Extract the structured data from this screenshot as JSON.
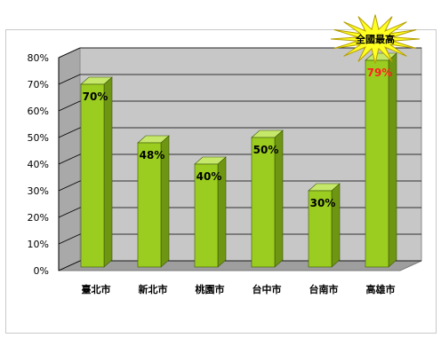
{
  "chart_data": {
    "type": "bar",
    "categories": [
      "臺北市",
      "新北市",
      "桃園市",
      "台中市",
      "台南市",
      "高雄市"
    ],
    "values": [
      70,
      48,
      40,
      50,
      30,
      79
    ],
    "data_labels": [
      "70%",
      "48%",
      "40%",
      "50%",
      "30%",
      "79%"
    ],
    "highlight_index": 5,
    "ylim": [
      0,
      80
    ],
    "yticks": [
      "0%",
      "10%",
      "20%",
      "30%",
      "40%",
      "50%",
      "60%",
      "70%",
      "80%"
    ],
    "grid": true,
    "style": "3d",
    "annotation": "全國最高",
    "title": "",
    "xlabel": "",
    "ylabel": ""
  },
  "colors": {
    "bar_front": "#9acd1f",
    "bar_side": "#6e9612",
    "bar_top": "#c5e86b",
    "wall": "#c7c7c7",
    "floor": "#9e9e9e",
    "label": "#000000",
    "highlight_label": "#ff2020",
    "burst": "#ffff22"
  }
}
